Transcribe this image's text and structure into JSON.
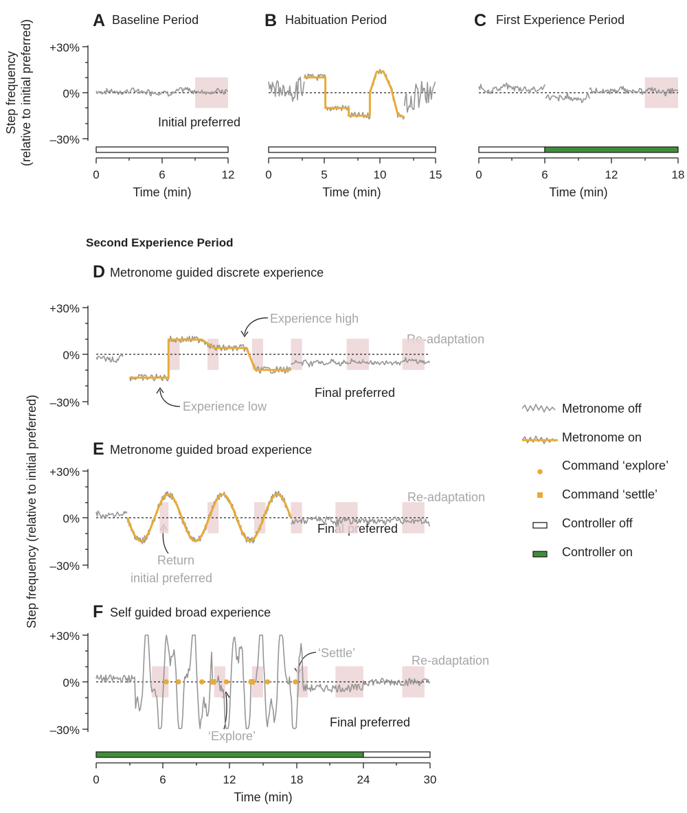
{
  "colors": {
    "trace": "#959595",
    "guide": "#e8ab36",
    "window": "#ecd3d6",
    "controller_on": "#3f8f3a",
    "controller_off": "#ffffff",
    "annotation": "#a6a6a6",
    "ink": "#231f20"
  },
  "figure": {
    "section_heading": "Second Experience Period",
    "ylabel_top": "Step frequency",
    "ylabel_top_2": "(relative to initial preferred)",
    "ylabel_bottom": "Step frequency (relative to initial preferred)",
    "xlabel": "Time (min)"
  },
  "legend": {
    "items": [
      {
        "label": "Metronome off",
        "icon": "noisy-trace-icon"
      },
      {
        "label": "Metronome on",
        "icon": "noisy-trace-guided-icon"
      },
      {
        "label": "Command ‘explore’",
        "icon": "circle-marker-icon"
      },
      {
        "label": "Command ‘settle’",
        "icon": "square-marker-icon"
      },
      {
        "label": "Controller off",
        "icon": "white-bar-icon"
      },
      {
        "label": "Controller on",
        "icon": "green-bar-icon"
      }
    ]
  },
  "chart_data": [
    {
      "panel": "A",
      "type": "line",
      "title": "Baseline Period",
      "xlabel": "Time (min)",
      "ylabel": "Step frequency (relative to initial preferred)",
      "xlim": [
        0,
        12
      ],
      "xticks": [
        "0",
        "6",
        "12"
      ],
      "ylim": [
        -30,
        30
      ],
      "yticks": [
        "+30%",
        "0%",
        "–30%"
      ],
      "windows": [
        [
          9,
          12
        ]
      ],
      "controller": [
        {
          "from": 0,
          "to": 12,
          "state": "off"
        }
      ],
      "annotations": [
        {
          "text": "Initial preferred",
          "x": 9,
          "y": -18
        }
      ],
      "series": [
        {
          "metronome": "off",
          "segments": [
            {
              "from": 0,
              "to": 12,
              "mode": "flat",
              "level": 1,
              "noise": 3
            }
          ]
        }
      ]
    },
    {
      "panel": "B",
      "type": "line",
      "title": "Habituation Period",
      "xlabel": "Time (min)",
      "xlim": [
        0,
        15
      ],
      "xticks": [
        "0",
        "5",
        "10",
        "15"
      ],
      "ylim": [
        -30,
        30
      ],
      "windows": [],
      "controller": [
        {
          "from": 0,
          "to": 15,
          "state": "off"
        }
      ],
      "annotations": [],
      "series": [
        {
          "metronome": "off",
          "segments": [
            {
              "from": 0,
              "to": 3.2,
              "mode": "flat",
              "level": 3,
              "noise": 11
            }
          ]
        },
        {
          "metronome": "on",
          "guide": [
            [
              3.2,
              10
            ],
            [
              5.1,
              10
            ],
            [
              5.1,
              -10
            ],
            [
              7.2,
              -10
            ],
            [
              7.2,
              -15
            ],
            [
              9.1,
              -15
            ],
            [
              9.1,
              0
            ],
            [
              9.7,
              13.5
            ],
            [
              10.3,
              14
            ],
            [
              11,
              3
            ],
            [
              11.6,
              -14
            ],
            [
              12.2,
              -16
            ]
          ]
        },
        {
          "metronome": "off",
          "segments": [
            {
              "from": 12.2,
              "to": 15,
              "mode": "flat",
              "level": 0,
              "noise": 14
            }
          ]
        }
      ]
    },
    {
      "panel": "C",
      "type": "line",
      "title": "First Experience Period",
      "xlabel": "Time (min)",
      "xlim": [
        0,
        18
      ],
      "xticks": [
        "0",
        "6",
        "12",
        "18"
      ],
      "ylim": [
        -30,
        30
      ],
      "windows": [
        [
          15,
          18
        ]
      ],
      "controller": [
        {
          "from": 0,
          "to": 6,
          "state": "off"
        },
        {
          "from": 6,
          "to": 18,
          "state": "on"
        }
      ],
      "annotations": [],
      "series": [
        {
          "metronome": "off",
          "segments": [
            {
              "from": 0,
              "to": 6,
              "mode": "flat",
              "level": 3,
              "noise": 3
            },
            {
              "from": 6,
              "to": 10,
              "mode": "flat",
              "level": -3,
              "noise": 3.5
            },
            {
              "from": 10,
              "to": 18,
              "mode": "flat",
              "level": 1,
              "noise": 3
            }
          ]
        }
      ]
    },
    {
      "panel": "D",
      "type": "line",
      "title": "Metronome guided discrete experience",
      "xlim": [
        0,
        30
      ],
      "ylim": [
        -30,
        30
      ],
      "yticks": [
        "+30%",
        "0%",
        "–30%"
      ],
      "windows": [
        [
          6.5,
          7.5
        ],
        [
          10,
          11
        ],
        [
          14,
          15
        ],
        [
          17.5,
          18.5
        ],
        [
          22.5,
          24.5
        ],
        [
          27.5,
          29.5
        ]
      ],
      "annotations": [
        {
          "text": "Experience high",
          "x": 16,
          "y": 22
        },
        {
          "text": "Experience low",
          "x": 7.5,
          "y": -25
        },
        {
          "text": "Re-adaptation",
          "x": 27.5,
          "y": 9
        },
        {
          "text": "Final preferred",
          "x": 22,
          "y": -20
        }
      ],
      "series": [
        {
          "metronome": "off",
          "segments": [
            {
              "from": 0,
              "to": 2.5,
              "mode": "flat",
              "level": -2,
              "noise": 3
            }
          ]
        },
        {
          "metronome": "on",
          "guide": [
            [
              3,
              -15
            ],
            [
              5.5,
              -15
            ],
            [
              6.5,
              -15
            ],
            [
              6.5,
              9.5
            ],
            [
              9.5,
              9.5
            ],
            [
              10.6,
              4
            ],
            [
              13.5,
              4
            ],
            [
              14.3,
              -10
            ],
            [
              17.5,
              -10
            ]
          ]
        },
        {
          "metronome": "off",
          "segments": [
            {
              "from": 17.5,
              "to": 24,
              "mode": "flat",
              "level": -5,
              "noise": 3
            },
            {
              "from": 24,
              "to": 30,
              "mode": "flat",
              "level": -5,
              "noise": 2.5
            }
          ]
        }
      ]
    },
    {
      "panel": "E",
      "type": "line",
      "title": "Metronome guided broad experience",
      "xlim": [
        0,
        30
      ],
      "ylim": [
        -30,
        30
      ],
      "yticks": [
        "+30%",
        "0%",
        "–30%"
      ],
      "windows": [
        [
          5.7,
          6.5
        ],
        [
          10,
          11
        ],
        [
          14.2,
          15.2
        ],
        [
          17.5,
          18.5
        ],
        [
          21.5,
          23.5
        ],
        [
          27.5,
          29.5
        ]
      ],
      "annotations": [
        {
          "text": "Return",
          "x": 6.5,
          "y": -16
        },
        {
          "text": "initial preferred",
          "x": 7,
          "y": -25
        },
        {
          "text": "Re-adaptation",
          "x": 27.5,
          "y": 9
        },
        {
          "text": "Final preferred",
          "x": 22,
          "y": -16
        }
      ],
      "series": [
        {
          "metronome": "off",
          "segments": [
            {
              "from": 0,
              "to": 2.8,
              "mode": "flat",
              "level": 2,
              "noise": 3
            }
          ]
        },
        {
          "metronome": "on",
          "guide": "sinusoid",
          "cycles": 6,
          "from": 2.8,
          "to": 17.5,
          "amplitude": 15
        }
      ]
    },
    {
      "panel": "F",
      "type": "line",
      "title": "Self guided broad experience",
      "xlabel": "Time (min)",
      "xlim": [
        0,
        30
      ],
      "xticks": [
        "0",
        "6",
        "12",
        "18",
        "24",
        "30"
      ],
      "ylim": [
        -30,
        30
      ],
      "yticks": [
        "+30%",
        "0%",
        "–30%"
      ],
      "windows": [
        [
          5,
          6.5
        ],
        [
          10.6,
          11.6
        ],
        [
          14,
          15
        ],
        [
          18,
          19
        ],
        [
          21.5,
          24
        ],
        [
          27.5,
          29.5
        ]
      ],
      "controller": [
        {
          "from": 0,
          "to": 24,
          "state": "on"
        },
        {
          "from": 24,
          "to": 30,
          "state": "off"
        }
      ],
      "commands": {
        "explore": [
          6.3,
          7.4,
          9.5,
          11.7,
          13.9,
          15.4,
          17.9
        ],
        "settle": [
          10.5,
          14
        ]
      },
      "annotations": [
        {
          "text": "‘Settle’",
          "x": 20,
          "y": 13
        },
        {
          "text": "‘Explore’",
          "x": 10,
          "y": -25
        },
        {
          "text": "Re-adaptation",
          "x": 27.5,
          "y": 9
        },
        {
          "text": "Final preferred",
          "x": 22,
          "y": -15
        }
      ],
      "series": [
        {
          "metronome": "off",
          "segments": [
            {
              "from": 0,
              "to": 30,
              "mode": "exploration"
            }
          ]
        }
      ]
    }
  ]
}
